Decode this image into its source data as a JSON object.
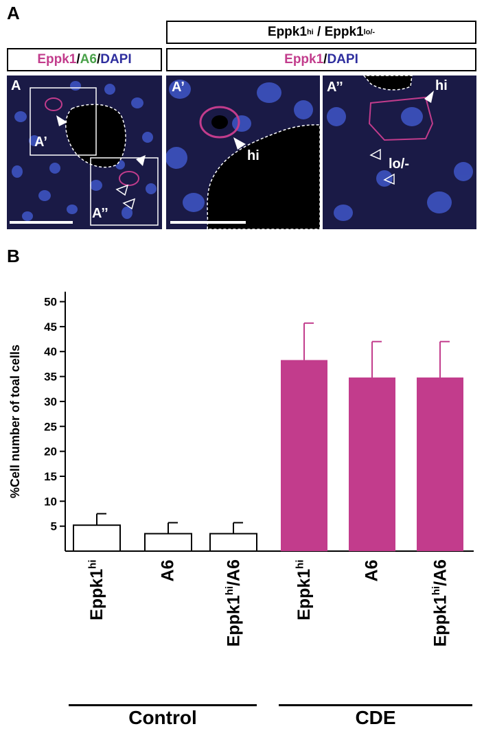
{
  "panel_a": {
    "letter": "A",
    "header_top": {
      "part1": "Eppk1",
      "sup1": "hi",
      "sep": " / ",
      "part2": "Eppk1",
      "sup2": "lo/-"
    },
    "legend_left": {
      "eppk1": "Eppk1",
      "slash1": "/",
      "a6": "A6",
      "slash2": "/",
      "dapi": "DAPI"
    },
    "legend_right": {
      "eppk1": "Eppk1",
      "slash": "/",
      "dapi": "DAPI"
    },
    "images": {
      "left": {
        "label": "A",
        "inset1": "A’",
        "inset2": "A’’"
      },
      "middle": {
        "label": "A’",
        "arrow_label": "hi"
      },
      "right": {
        "label": "A’’",
        "arrow_label_hi": "hi",
        "arrow_label_lo": "lo/-"
      }
    },
    "colors": {
      "eppk1": "#c23c8c",
      "a6": "#4aa24a",
      "dapi": "#2e2e9e",
      "nuclei": "#3f56c8",
      "background": "#16163c"
    }
  },
  "panel_b": {
    "letter": "B",
    "groups": [
      "Control",
      "CDE"
    ],
    "x_labels": [
      {
        "main": "Eppk1",
        "sup": "hi",
        "tail": ""
      },
      {
        "main": "A6",
        "sup": "",
        "tail": ""
      },
      {
        "main": "Eppk1",
        "sup": "hi",
        "tail": "/A6"
      },
      {
        "main": "Eppk1",
        "sup": "hi",
        "tail": ""
      },
      {
        "main": "A6",
        "sup": "",
        "tail": ""
      },
      {
        "main": "Eppk1",
        "sup": "hi",
        "tail": "/A6"
      }
    ]
  },
  "chart_data": {
    "type": "bar",
    "categories": [
      "Eppk1hi",
      "A6",
      "Eppk1hi/A6",
      "Eppk1hi",
      "A6",
      "Eppk1hi/A6"
    ],
    "groups": [
      {
        "name": "Control",
        "categories": [
          0,
          1,
          2
        ]
      },
      {
        "name": "CDE",
        "categories": [
          3,
          4,
          5
        ]
      }
    ],
    "values": [
      5.2,
      3.5,
      3.5,
      38.3,
      34.8,
      34.8
    ],
    "errors": [
      2.3,
      2.2,
      2.2,
      7.4,
      7.2,
      7.2
    ],
    "bar_fill": [
      "#ffffff",
      "#ffffff",
      "#ffffff",
      "#c23c8c",
      "#c23c8c",
      "#c23c8c"
    ],
    "ylabel": "%Cell number of toal cells",
    "yticks": [
      5,
      10,
      15,
      20,
      25,
      30,
      35,
      40,
      45,
      50
    ],
    "ylim": [
      0,
      52
    ],
    "grid": false
  }
}
